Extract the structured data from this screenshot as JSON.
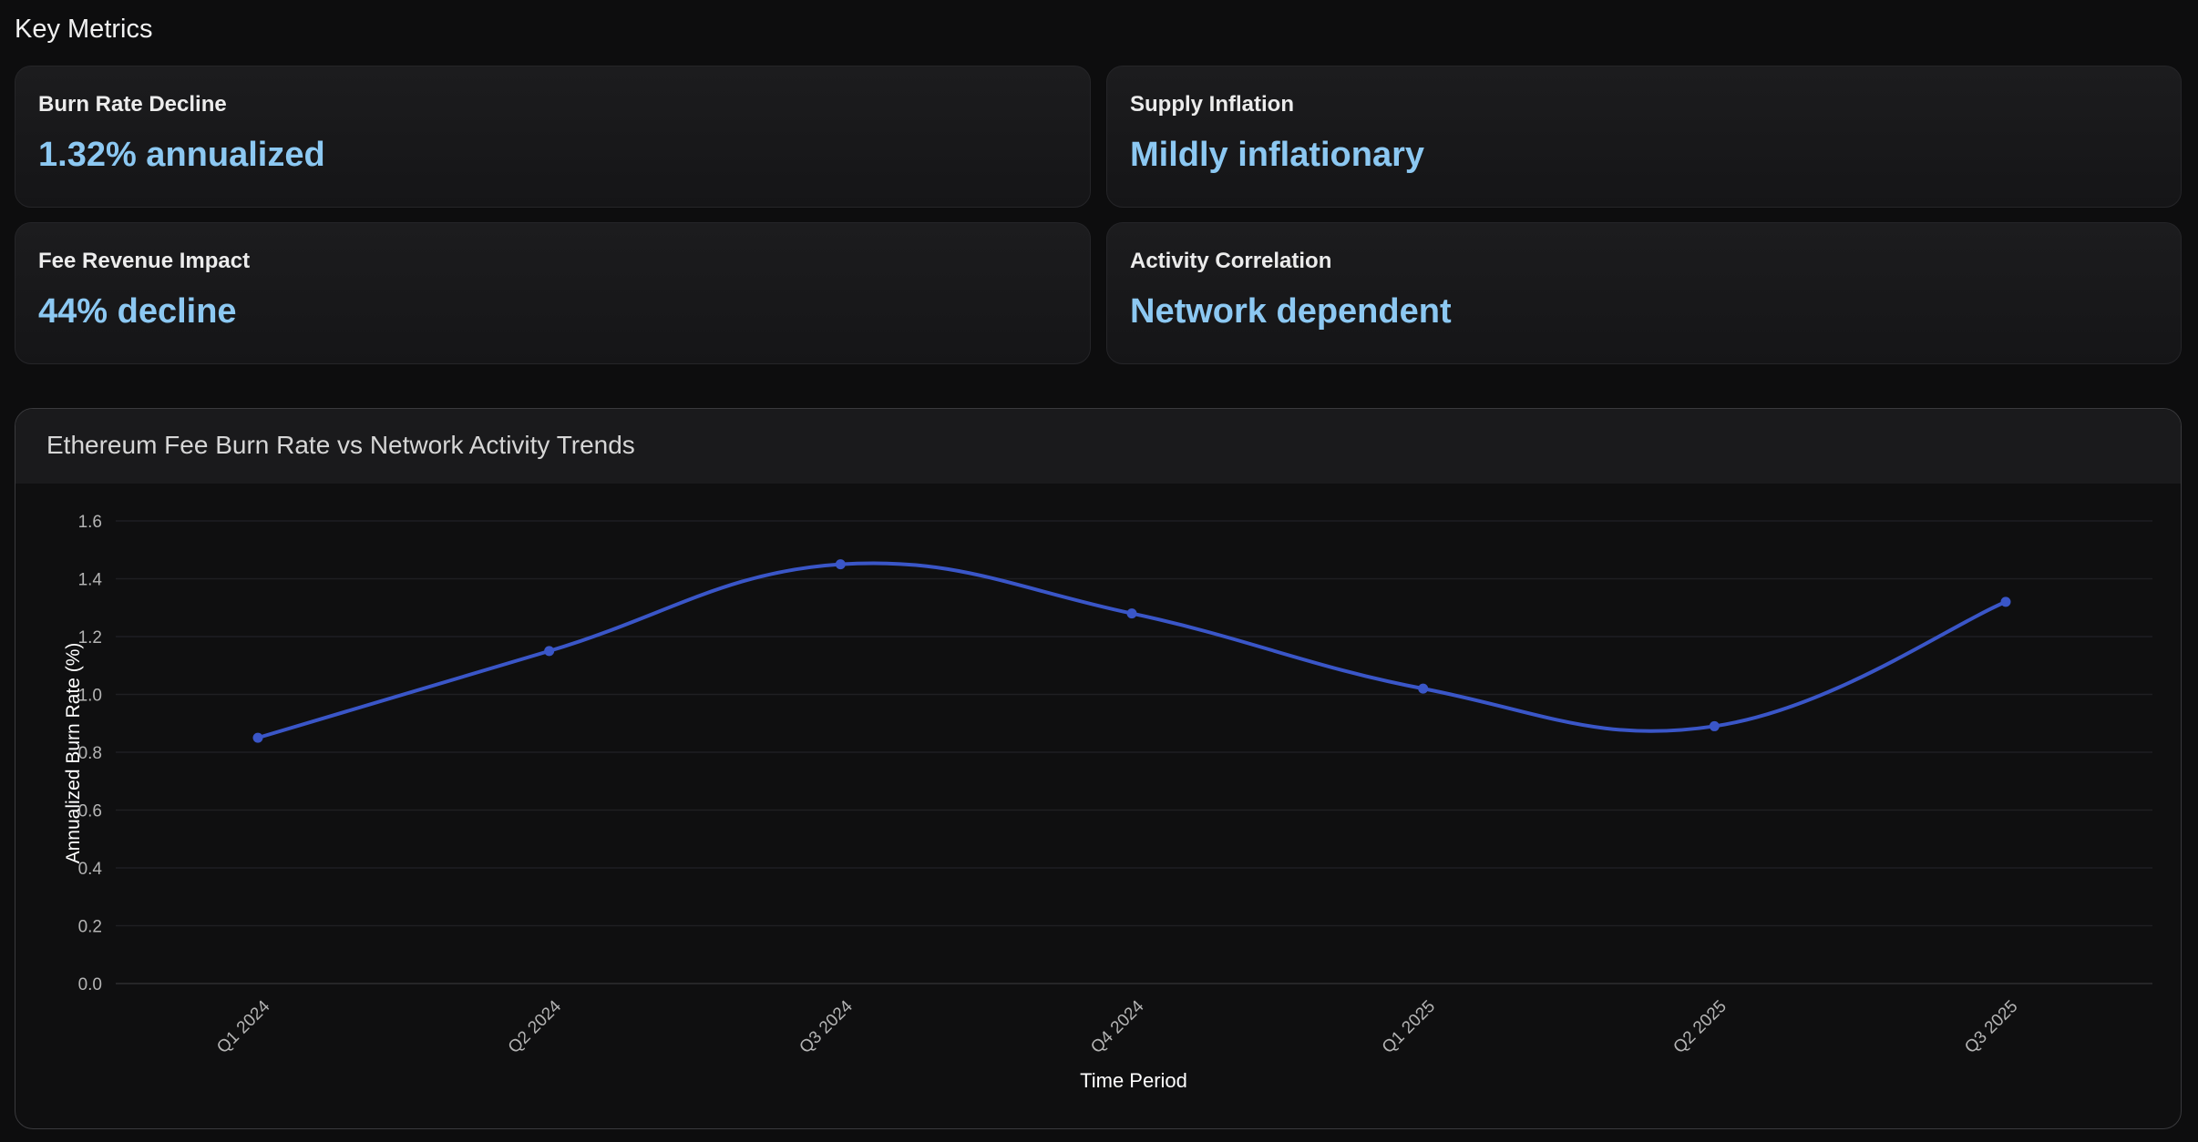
{
  "section_title": "Key Metrics",
  "metrics": [
    {
      "label": "Burn Rate Decline",
      "value": "1.32% annualized"
    },
    {
      "label": "Supply Inflation",
      "value": "Mildly inflationary"
    },
    {
      "label": "Fee Revenue Impact",
      "value": "44% decline"
    },
    {
      "label": "Activity Correlation",
      "value": "Network dependent"
    }
  ],
  "colors": {
    "accent": "#8cc8f2",
    "series": "#3a56c8",
    "background": "#0d0d0e"
  },
  "chart_data": {
    "type": "line",
    "title": "Ethereum Fee Burn Rate vs Network Activity Trends",
    "xlabel": "Time Period",
    "ylabel": "Annualized Burn Rate (%)",
    "categories": [
      "Q1 2024",
      "Q2 2024",
      "Q3 2024",
      "Q4 2024",
      "Q1 2025",
      "Q2 2025",
      "Q3 2025"
    ],
    "series": [
      {
        "values": [
          0.85,
          1.15,
          1.45,
          1.28,
          1.02,
          0.89,
          1.32
        ]
      }
    ],
    "ylim": [
      0,
      1.6
    ],
    "yticks": [
      "0.0",
      "0.2",
      "0.4",
      "0.6",
      "0.8",
      "1.0",
      "1.2",
      "1.4",
      "1.6"
    ],
    "grid": true,
    "smooth": true
  }
}
